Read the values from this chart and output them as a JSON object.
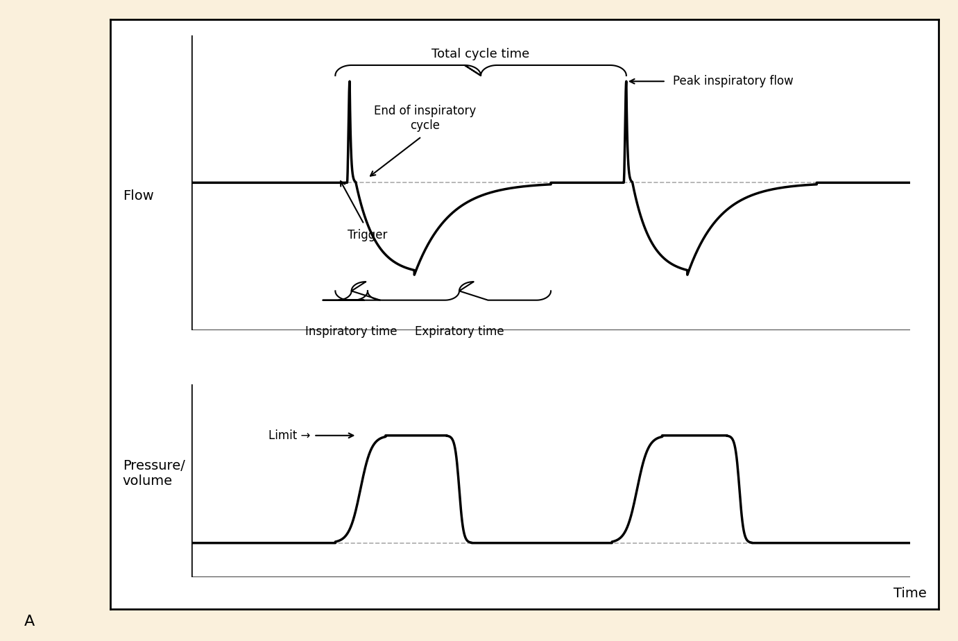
{
  "background_color": "#FAF0DC",
  "panel_bg": "#FFFFFF",
  "line_color": "#000000",
  "dashed_color": "#AAAAAA",
  "title_A": "A",
  "time_label": "Time",
  "flow_label": "Flow",
  "pressure_label": "Pressure/\nvolume",
  "annotations": {
    "total_cycle_time": "Total cycle time",
    "end_inspiratory_cycle": "End of inspiratory\ncycle",
    "peak_inspiratory_flow": "Peak inspiratory flow",
    "trigger": "Trigger",
    "inspiratory_time": "Inspiratory time",
    "expiratory_time": "Expiratory time",
    "limit": "Limit →"
  },
  "flow_xlim": [
    0,
    10
  ],
  "flow_ylim": [
    -3.2,
    3.2
  ],
  "pres_xlim": [
    0,
    10
  ],
  "pres_ylim": [
    -0.6,
    2.8
  ]
}
